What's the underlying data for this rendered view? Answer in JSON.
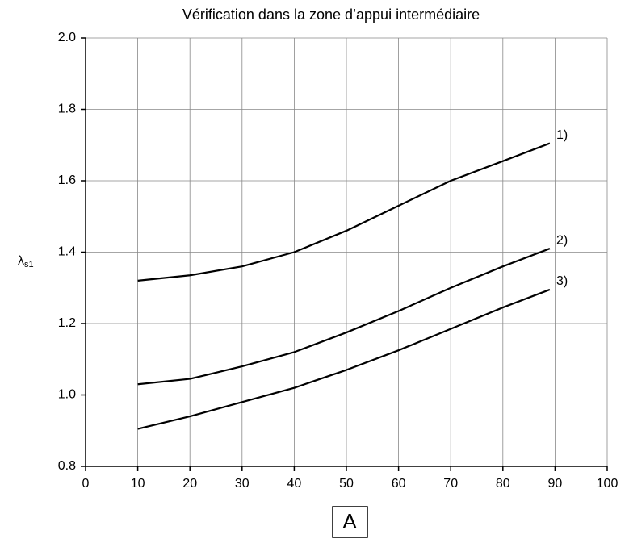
{
  "chart_data": {
    "type": "line",
    "title": "Vérification dans la zone d’appui intermédiaire",
    "x_label": "A",
    "y_label": {
      "symbol": "λ",
      "subscript": "s1"
    },
    "x": [
      10,
      20,
      30,
      40,
      50,
      60,
      70,
      80,
      89
    ],
    "series": [
      {
        "name": "1)",
        "color": "#000000",
        "values": [
          1.32,
          1.335,
          1.36,
          1.4,
          1.46,
          1.53,
          1.6,
          1.655,
          1.705
        ]
      },
      {
        "name": "2)",
        "color": "#000000",
        "values": [
          1.03,
          1.045,
          1.08,
          1.12,
          1.175,
          1.235,
          1.3,
          1.36,
          1.41
        ]
      },
      {
        "name": "3)",
        "color": "#000000",
        "values": [
          0.905,
          0.94,
          0.98,
          1.02,
          1.07,
          1.125,
          1.185,
          1.245,
          1.295
        ]
      }
    ],
    "xlim": [
      0,
      100
    ],
    "xticks": [
      0,
      10,
      20,
      30,
      40,
      50,
      60,
      70,
      80,
      90,
      100
    ],
    "ylim": [
      0.8,
      2.0
    ],
    "yticks": [
      0.8,
      {
        "value": 1.0,
        "label": "1.0"
      },
      1.2,
      1.4,
      1.6,
      1.8,
      {
        "value": 2.0,
        "label": "2.0"
      }
    ],
    "grid": true
  }
}
